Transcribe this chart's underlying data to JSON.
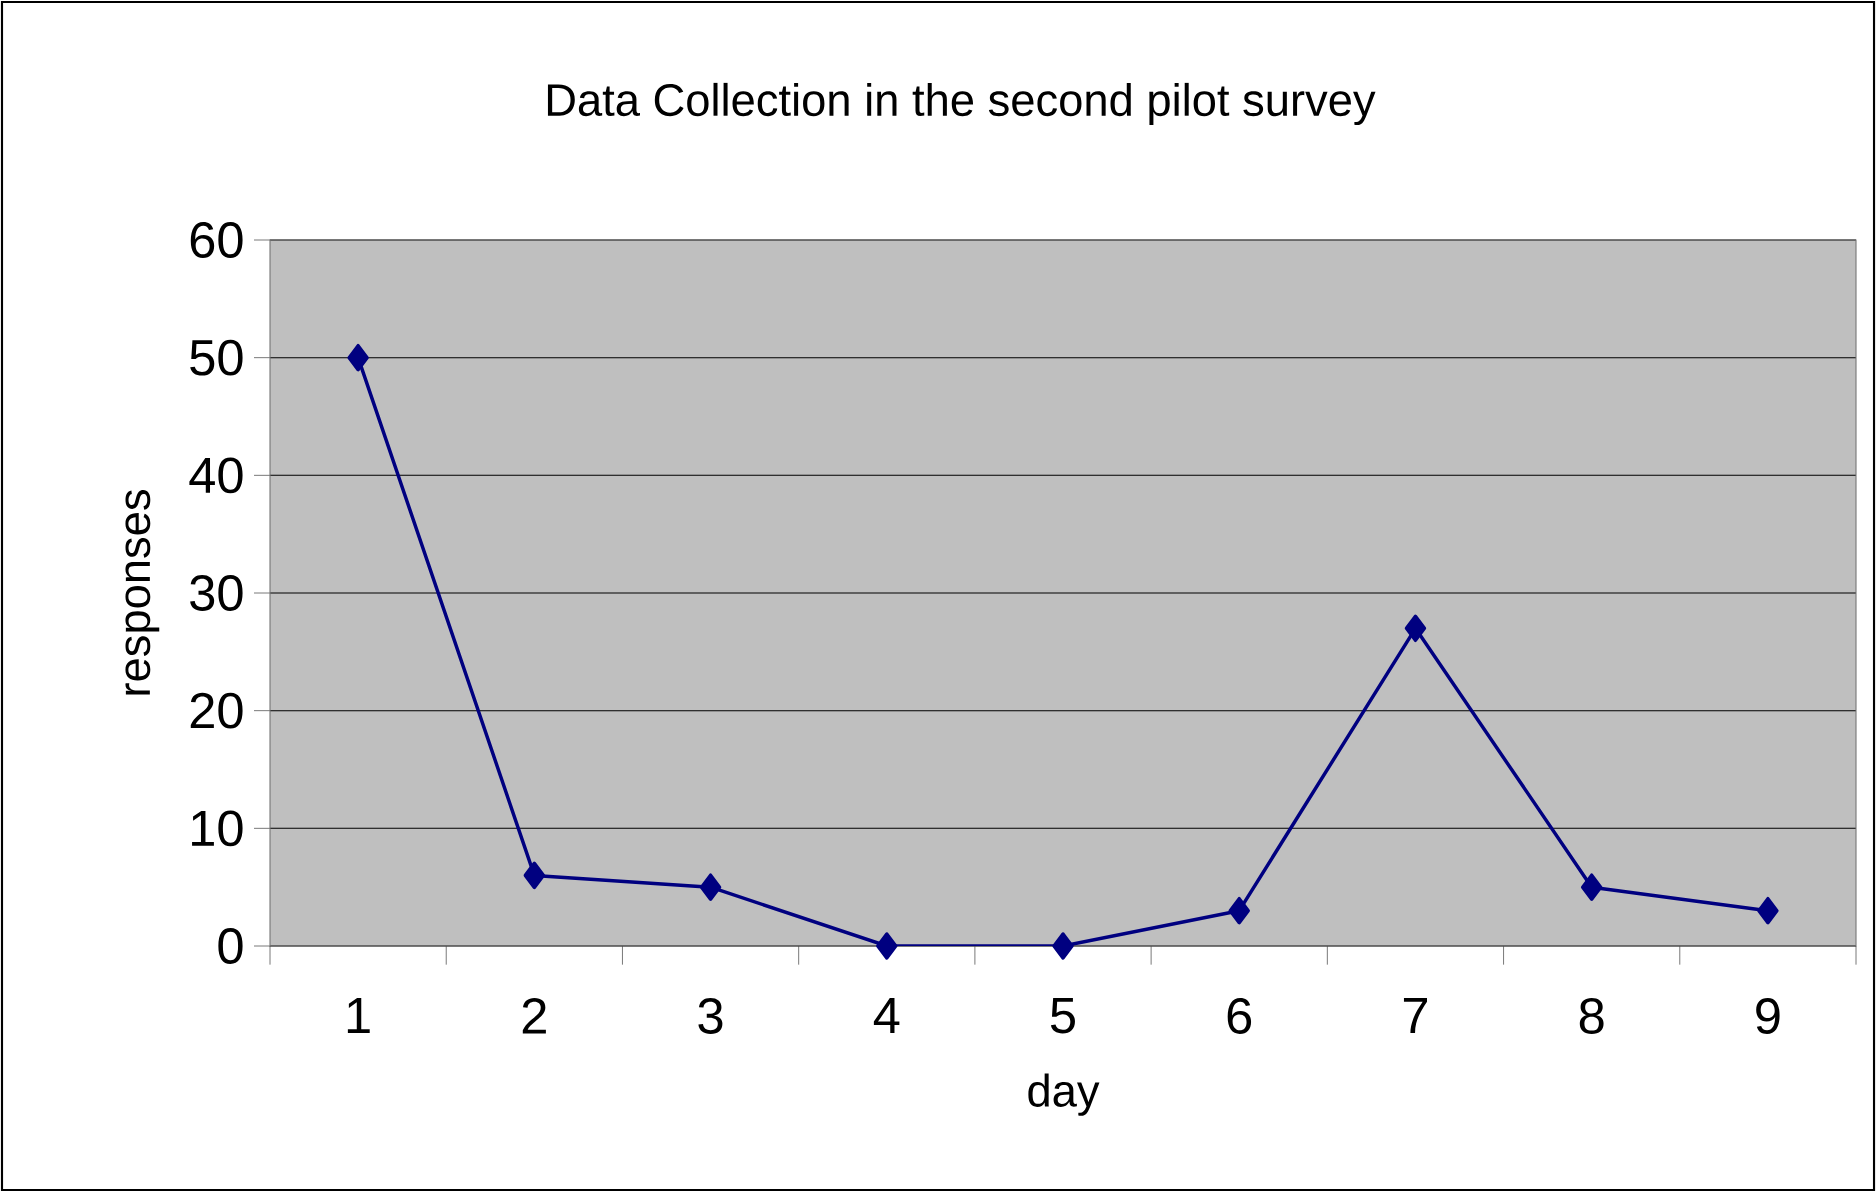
{
  "chart_data": {
    "type": "line",
    "title": "Data Collection in the second pilot survey",
    "xlabel": "day",
    "ylabel": "responses",
    "categories": [
      "1",
      "2",
      "3",
      "4",
      "5",
      "6",
      "7",
      "8",
      "9"
    ],
    "series": [
      {
        "color": "#000080",
        "values": [
          50,
          6,
          5,
          0,
          0,
          3,
          27,
          5,
          3
        ]
      }
    ],
    "ylim": [
      0,
      60
    ],
    "yticks": [
      0,
      10,
      20,
      30,
      40,
      50,
      60
    ],
    "grid": "y",
    "marker": "diamond",
    "line_style": "solid"
  }
}
